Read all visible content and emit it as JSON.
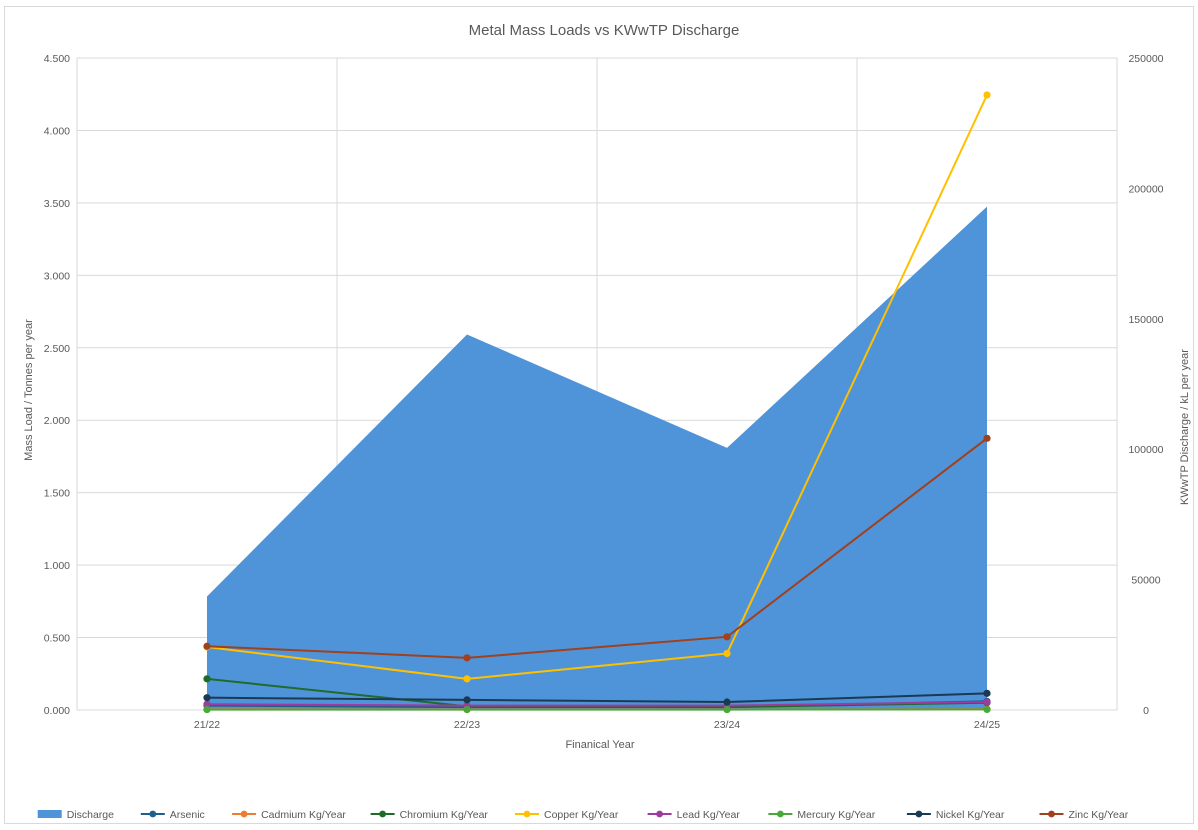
{
  "chart_data": {
    "type": "area+line",
    "title": "Metal Mass Loads vs KWwTP Discharge",
    "xlabel": "Finanical Year",
    "ylabel": "Mass Load / Tonnes per year",
    "y2label": "KWwTP Discharge / kL per year",
    "categories": [
      "21/22",
      "22/23",
      "23/24",
      "24/25"
    ],
    "ylim": [
      0,
      4.5
    ],
    "y_ticks": [
      "0.000",
      "0.500",
      "1.000",
      "1.500",
      "2.000",
      "2.500",
      "3.000",
      "3.500",
      "4.000",
      "4.500"
    ],
    "y2lim": [
      0,
      250000
    ],
    "y2_ticks": [
      "0",
      "50000",
      "100000",
      "150000",
      "200000",
      "250000"
    ],
    "grid": true,
    "legend_position": "bottom",
    "area_series": {
      "name": "Discharge",
      "color": "#4f94d8",
      "axis": "secondary",
      "values": [
        43500,
        144000,
        100500,
        193000
      ]
    },
    "series": [
      {
        "name": "Arsenic",
        "color": "#1f5f8b",
        "values": [
          0.03,
          0.02,
          0.02,
          0.06
        ]
      },
      {
        "name": "Cadmium Kg/Year",
        "color": "#ed7d31",
        "values": [
          0.005,
          0.004,
          0.004,
          0.006
        ]
      },
      {
        "name": "Chromium Kg/Year",
        "color": "#1e6b2a",
        "values": [
          0.215,
          0.025,
          0.02,
          0.05
        ]
      },
      {
        "name": "Copper Kg/Year",
        "color": "#ffc000",
        "values": [
          0.435,
          0.215,
          0.39,
          4.245
        ]
      },
      {
        "name": "Lead Kg/Year",
        "color": "#9e3b9e",
        "values": [
          0.04,
          0.03,
          0.03,
          0.055
        ]
      },
      {
        "name": "Mercury Kg/Year",
        "color": "#4aa83a",
        "values": [
          0.003,
          0.003,
          0.003,
          0.004
        ]
      },
      {
        "name": "Nickel Kg/Year",
        "color": "#1b3a52",
        "values": [
          0.085,
          0.07,
          0.055,
          0.115
        ]
      },
      {
        "name": "Zinc Kg/Year",
        "color": "#a0401c",
        "values": [
          0.44,
          0.36,
          0.505,
          1.875
        ]
      }
    ]
  }
}
